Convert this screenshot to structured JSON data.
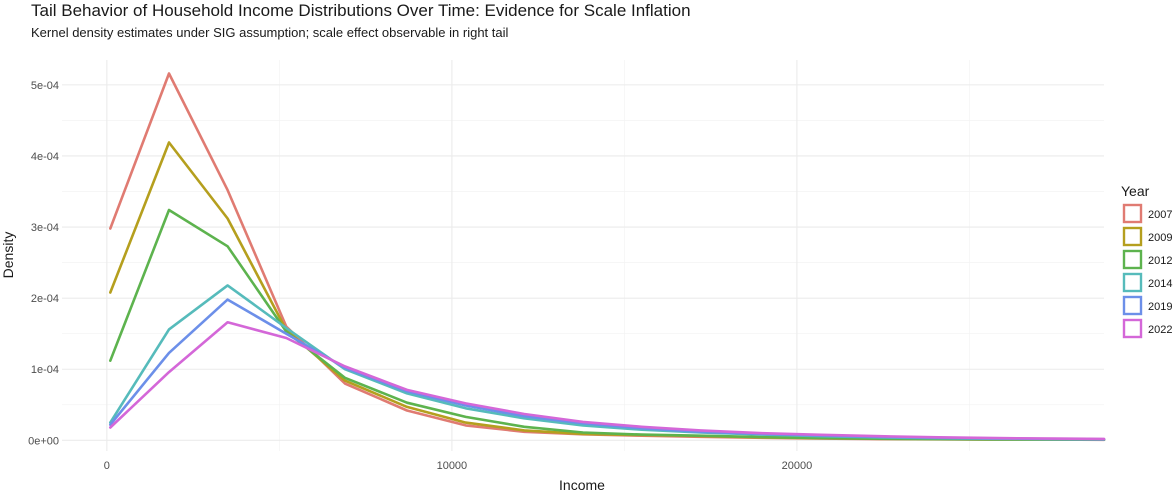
{
  "chart_data": {
    "type": "line",
    "title": "Tail Behavior of Household Income Distributions Over Time: Evidence for Scale Inflation",
    "subtitle": "Kernel density estimates under SIG assumption; scale effect observable in right tail",
    "xlabel": "Income",
    "ylabel": "Density",
    "xlim": [
      -1300,
      28900
    ],
    "ylim": [
      -1.5e-05,
      0.000535
    ],
    "xticks": [
      0,
      10000,
      20000
    ],
    "xtick_labels": [
      "0",
      "10000",
      "20000"
    ],
    "yticks": [
      0,
      0.0001,
      0.0002,
      0.0003,
      0.0004,
      0.0005
    ],
    "ytick_labels": [
      "0e+00",
      "1e-04",
      "2e-04",
      "3e-04",
      "4e-04",
      "5e-04"
    ],
    "grid": true,
    "legend_title": "Year",
    "legend_position": "right",
    "x": [
      100,
      1800,
      3500,
      5200,
      6900,
      8700,
      10400,
      12100,
      13800,
      15500,
      17200,
      19000,
      20700,
      22400,
      24100,
      25800,
      27500,
      28900
    ],
    "series": [
      {
        "name": "2007",
        "color": "#E07B72",
        "values": [
          0.000298,
          0.000516,
          0.000352,
          0.00016,
          8e-05,
          4.2e-05,
          2.1e-05,
          1.2e-05,
          8.5e-06,
          6.5e-06,
          5e-06,
          3.5e-06,
          2.5e-06,
          1.8e-06,
          1.4e-06,
          1.1e-06,
          1e-06,
          8e-07
        ]
      },
      {
        "name": "2009",
        "color": "#B59F1E",
        "values": [
          0.000208,
          0.000419,
          0.000312,
          0.000155,
          8.4e-05,
          4.7e-05,
          2.5e-05,
          1.4e-05,
          9e-06,
          7.5e-06,
          6e-06,
          4.2e-06,
          3e-06,
          2.1e-06,
          1.6e-06,
          1.2e-06,
          1e-06,
          9e-07
        ]
      },
      {
        "name": "2012",
        "color": "#5DB34E",
        "values": [
          0.000112,
          0.000324,
          0.000273,
          0.000153,
          8.8e-05,
          5.3e-05,
          3.3e-05,
          1.9e-05,
          1.1e-05,
          8e-06,
          6.5e-06,
          4.5e-06,
          3.2e-06,
          2.3e-06,
          1.7e-06,
          1.3e-06,
          1.1e-06,
          1e-06
        ]
      },
      {
        "name": "2014",
        "color": "#56BBBB",
        "values": [
          2.5e-05,
          0.000156,
          0.000218,
          0.000158,
          0.0001,
          6.6e-05,
          4.5e-05,
          3.1e-05,
          2.1e-05,
          1.5e-05,
          1.1e-05,
          8e-06,
          5.8e-06,
          4.2e-06,
          3e-06,
          2.2e-06,
          1.6e-06,
          1.2e-06
        ]
      },
      {
        "name": "2019",
        "color": "#6C8FE9",
        "values": [
          2.2e-05,
          0.000123,
          0.000198,
          0.00015,
          0.000102,
          6.9e-05,
          4.9e-05,
          3.4e-05,
          2.4e-05,
          1.7e-05,
          1.2e-05,
          9e-06,
          6.8e-06,
          5e-06,
          3.7e-06,
          2.7e-06,
          2e-06,
          1.5e-06
        ]
      },
      {
        "name": "2022",
        "color": "#D467D8",
        "values": [
          1.8e-05,
          9.6e-05,
          0.000166,
          0.000144,
          0.000104,
          7.1e-05,
          5.2e-05,
          3.7e-05,
          2.6e-05,
          1.9e-05,
          1.4e-05,
          1e-05,
          7.8e-06,
          5.8e-06,
          4.3e-06,
          3.2e-06,
          2.5e-06,
          2e-06
        ]
      }
    ]
  }
}
